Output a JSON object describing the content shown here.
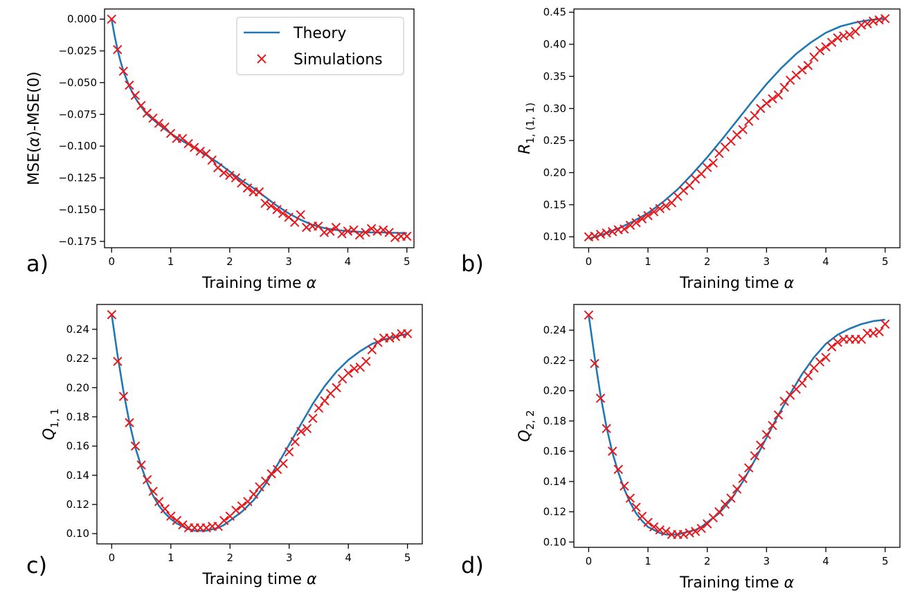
{
  "colors": {
    "theory": "#1f77b4",
    "simulations": "#e8171b",
    "axes": "#000000"
  },
  "legend": {
    "theory_label": "Theory",
    "simulations_label": "Simulations",
    "placement": "top-right of panel a"
  },
  "chart_data": [
    {
      "type": "line",
      "panel": "a)",
      "xlabel": "Training time α",
      "ylabel": "MSE(α)-MSE(0)",
      "xlim": [
        -0.12,
        5.12
      ],
      "ylim": [
        -0.18,
        0.008
      ],
      "xticks": [
        0,
        1,
        2,
        3,
        4,
        5
      ],
      "yticks": [
        0.0,
        -0.025,
        -0.05,
        -0.075,
        -0.1,
        -0.125,
        -0.15,
        -0.175
      ],
      "ytick_labels": [
        "0.000",
        "−0.025",
        "−0.050",
        "−0.075",
        "−0.100",
        "−0.125",
        "−0.150",
        "−0.175"
      ],
      "series": [
        {
          "name": "Theory",
          "kind": "line",
          "x": [
            0,
            0.05,
            0.1,
            0.15,
            0.2,
            0.3,
            0.4,
            0.5,
            0.6,
            0.7,
            0.8,
            1.0,
            1.2,
            1.4,
            1.6,
            1.8,
            2.0,
            2.2,
            2.4,
            2.6,
            2.8,
            3.0,
            3.2,
            3.4,
            3.6,
            3.8,
            4.0,
            4.2,
            4.4,
            4.6,
            4.8,
            5.0
          ],
          "y": [
            0,
            -0.013,
            -0.024,
            -0.033,
            -0.041,
            -0.053,
            -0.062,
            -0.069,
            -0.075,
            -0.079,
            -0.083,
            -0.09,
            -0.096,
            -0.101,
            -0.107,
            -0.113,
            -0.12,
            -0.127,
            -0.133,
            -0.14,
            -0.147,
            -0.153,
            -0.158,
            -0.162,
            -0.1645,
            -0.166,
            -0.167,
            -0.1675,
            -0.168,
            -0.168,
            -0.1683,
            -0.1685
          ]
        },
        {
          "name": "Simulations",
          "kind": "scatter",
          "x": [
            0,
            0.1,
            0.2,
            0.3,
            0.4,
            0.5,
            0.6,
            0.7,
            0.8,
            0.9,
            1.0,
            1.1,
            1.2,
            1.3,
            1.4,
            1.5,
            1.6,
            1.7,
            1.8,
            1.9,
            2.0,
            2.1,
            2.2,
            2.3,
            2.4,
            2.5,
            2.6,
            2.7,
            2.8,
            2.9,
            3.0,
            3.1,
            3.2,
            3.3,
            3.4,
            3.5,
            3.6,
            3.7,
            3.8,
            3.9,
            4.0,
            4.1,
            4.2,
            4.3,
            4.4,
            4.5,
            4.6,
            4.7,
            4.8,
            4.9,
            5.0
          ],
          "y": [
            0,
            -0.024,
            -0.041,
            -0.052,
            -0.06,
            -0.068,
            -0.074,
            -0.078,
            -0.082,
            -0.085,
            -0.09,
            -0.094,
            -0.094,
            -0.098,
            -0.101,
            -0.104,
            -0.106,
            -0.111,
            -0.117,
            -0.121,
            -0.123,
            -0.125,
            -0.129,
            -0.133,
            -0.136,
            -0.136,
            -0.145,
            -0.147,
            -0.15,
            -0.153,
            -0.156,
            -0.16,
            -0.154,
            -0.164,
            -0.163,
            -0.163,
            -0.168,
            -0.167,
            -0.164,
            -0.169,
            -0.167,
            -0.166,
            -0.17,
            -0.168,
            -0.165,
            -0.167,
            -0.166,
            -0.168,
            -0.172,
            -0.171,
            -0.171
          ]
        }
      ]
    },
    {
      "type": "line",
      "panel": "b)",
      "xlabel": "Training time α",
      "ylabel": "R",
      "ylabel_subscript": "1, (1, 1)",
      "xlim": [
        -0.25,
        5.25
      ],
      "ylim": [
        0.083,
        0.455
      ],
      "xticks": [
        0,
        1,
        2,
        3,
        4,
        5
      ],
      "yticks": [
        0.1,
        0.15,
        0.2,
        0.25,
        0.3,
        0.35,
        0.4,
        0.45
      ],
      "ytick_labels": [
        "0.10",
        "0.15",
        "0.20",
        "0.25",
        "0.30",
        "0.35",
        "0.40",
        "0.45"
      ],
      "series": [
        {
          "name": "Theory",
          "kind": "line",
          "x": [
            0,
            0.25,
            0.5,
            0.75,
            1.0,
            1.25,
            1.5,
            1.75,
            2.0,
            2.25,
            2.5,
            2.75,
            3.0,
            3.25,
            3.5,
            3.75,
            4.0,
            4.25,
            4.5,
            4.75,
            5.0
          ],
          "y": [
            0.097,
            0.104,
            0.113,
            0.124,
            0.137,
            0.154,
            0.174,
            0.198,
            0.224,
            0.252,
            0.281,
            0.31,
            0.338,
            0.363,
            0.385,
            0.403,
            0.418,
            0.428,
            0.434,
            0.438,
            0.44
          ]
        },
        {
          "name": "Simulations",
          "kind": "scatter",
          "x": [
            0,
            0.1,
            0.2,
            0.3,
            0.4,
            0.5,
            0.6,
            0.7,
            0.8,
            0.9,
            1.0,
            1.1,
            1.2,
            1.3,
            1.4,
            1.5,
            1.6,
            1.7,
            1.8,
            1.9,
            2.0,
            2.1,
            2.2,
            2.3,
            2.4,
            2.5,
            2.6,
            2.7,
            2.8,
            2.9,
            3.0,
            3.1,
            3.2,
            3.3,
            3.4,
            3.5,
            3.6,
            3.7,
            3.8,
            3.9,
            4.0,
            4.1,
            4.2,
            4.3,
            4.4,
            4.5,
            4.6,
            4.7,
            4.8,
            4.9,
            5.0
          ],
          "y": [
            0.1,
            0.101,
            0.104,
            0.106,
            0.108,
            0.111,
            0.112,
            0.118,
            0.122,
            0.128,
            0.133,
            0.139,
            0.144,
            0.148,
            0.153,
            0.163,
            0.172,
            0.18,
            0.19,
            0.198,
            0.208,
            0.215,
            0.23,
            0.24,
            0.249,
            0.259,
            0.267,
            0.28,
            0.289,
            0.3,
            0.308,
            0.315,
            0.321,
            0.333,
            0.344,
            0.352,
            0.36,
            0.367,
            0.38,
            0.39,
            0.396,
            0.403,
            0.41,
            0.413,
            0.415,
            0.42,
            0.43,
            0.432,
            0.436,
            0.438,
            0.44
          ]
        }
      ]
    },
    {
      "type": "line",
      "panel": "c)",
      "xlabel": "Training time α",
      "ylabel": "Q",
      "ylabel_subscript": "1, 1",
      "xlim": [
        -0.25,
        5.25
      ],
      "ylim": [
        0.093,
        0.257
      ],
      "xticks": [
        0,
        1,
        2,
        3,
        4,
        5
      ],
      "yticks": [
        0.1,
        0.12,
        0.14,
        0.16,
        0.18,
        0.2,
        0.22,
        0.24
      ],
      "ytick_labels": [
        "0.10",
        "0.12",
        "0.14",
        "0.16",
        "0.18",
        "0.20",
        "0.22",
        "0.24"
      ],
      "series": [
        {
          "name": "Theory",
          "kind": "line",
          "x": [
            0,
            0.05,
            0.1,
            0.2,
            0.3,
            0.4,
            0.5,
            0.6,
            0.7,
            0.8,
            0.9,
            1.0,
            1.1,
            1.2,
            1.3,
            1.4,
            1.5,
            1.6,
            1.7,
            1.8,
            1.9,
            2.0,
            2.2,
            2.4,
            2.6,
            2.8,
            3.0,
            3.2,
            3.4,
            3.6,
            3.8,
            4.0,
            4.2,
            4.4,
            4.6,
            4.8,
            5.0
          ],
          "y": [
            0.25,
            0.236,
            0.222,
            0.197,
            0.176,
            0.159,
            0.146,
            0.135,
            0.126,
            0.119,
            0.114,
            0.11,
            0.107,
            0.105,
            0.103,
            0.102,
            0.102,
            0.102,
            0.103,
            0.104,
            0.106,
            0.109,
            0.115,
            0.123,
            0.134,
            0.147,
            0.161,
            0.175,
            0.189,
            0.201,
            0.211,
            0.219,
            0.225,
            0.23,
            0.233,
            0.235,
            0.237
          ]
        },
        {
          "name": "Simulations",
          "kind": "scatter",
          "x": [
            0,
            0.1,
            0.2,
            0.3,
            0.4,
            0.5,
            0.6,
            0.7,
            0.8,
            0.9,
            1.0,
            1.1,
            1.2,
            1.3,
            1.4,
            1.5,
            1.6,
            1.7,
            1.8,
            1.9,
            2.0,
            2.1,
            2.2,
            2.3,
            2.4,
            2.5,
            2.6,
            2.7,
            2.8,
            2.9,
            3.0,
            3.1,
            3.2,
            3.3,
            3.4,
            3.5,
            3.6,
            3.7,
            3.8,
            3.9,
            4.0,
            4.1,
            4.2,
            4.3,
            4.4,
            4.5,
            4.6,
            4.7,
            4.8,
            4.9,
            5.0
          ],
          "y": [
            0.25,
            0.218,
            0.194,
            0.176,
            0.16,
            0.147,
            0.137,
            0.129,
            0.122,
            0.117,
            0.112,
            0.109,
            0.106,
            0.104,
            0.104,
            0.104,
            0.104,
            0.105,
            0.105,
            0.109,
            0.112,
            0.116,
            0.119,
            0.122,
            0.127,
            0.132,
            0.136,
            0.141,
            0.144,
            0.148,
            0.156,
            0.163,
            0.17,
            0.172,
            0.179,
            0.186,
            0.191,
            0.196,
            0.2,
            0.206,
            0.21,
            0.213,
            0.214,
            0.218,
            0.226,
            0.231,
            0.234,
            0.234,
            0.235,
            0.237,
            0.237
          ]
        }
      ]
    },
    {
      "type": "line",
      "panel": "d)",
      "xlabel": "Training time α",
      "ylabel": "Q",
      "ylabel_subscript": "2, 2",
      "xlim": [
        -0.25,
        5.25
      ],
      "ylim": [
        0.0965,
        0.257
      ],
      "xticks": [
        0,
        1,
        2,
        3,
        4,
        5
      ],
      "yticks": [
        0.1,
        0.12,
        0.14,
        0.16,
        0.18,
        0.2,
        0.22,
        0.24
      ],
      "ytick_labels": [
        "0.10",
        "0.12",
        "0.14",
        "0.16",
        "0.18",
        "0.20",
        "0.22",
        "0.24"
      ],
      "series": [
        {
          "name": "Theory",
          "kind": "line",
          "x": [
            0,
            0.05,
            0.1,
            0.2,
            0.3,
            0.4,
            0.5,
            0.6,
            0.7,
            0.8,
            0.9,
            1.0,
            1.1,
            1.2,
            1.3,
            1.4,
            1.5,
            1.6,
            1.7,
            1.8,
            1.9,
            2.0,
            2.2,
            2.4,
            2.6,
            2.8,
            3.0,
            3.2,
            3.4,
            3.6,
            3.8,
            4.0,
            4.2,
            4.4,
            4.6,
            4.8,
            5.0
          ],
          "y": [
            0.25,
            0.236,
            0.222,
            0.197,
            0.176,
            0.159,
            0.146,
            0.135,
            0.126,
            0.119,
            0.114,
            0.11,
            0.108,
            0.106,
            0.105,
            0.105,
            0.105,
            0.106,
            0.107,
            0.108,
            0.11,
            0.113,
            0.119,
            0.128,
            0.14,
            0.154,
            0.169,
            0.184,
            0.198,
            0.211,
            0.222,
            0.231,
            0.237,
            0.241,
            0.244,
            0.246,
            0.247
          ]
        },
        {
          "name": "Simulations",
          "kind": "scatter",
          "x": [
            0,
            0.1,
            0.2,
            0.3,
            0.4,
            0.5,
            0.6,
            0.7,
            0.8,
            0.9,
            1.0,
            1.1,
            1.2,
            1.3,
            1.4,
            1.5,
            1.6,
            1.7,
            1.8,
            1.9,
            2.0,
            2.1,
            2.2,
            2.3,
            2.4,
            2.5,
            2.6,
            2.7,
            2.8,
            2.9,
            3.0,
            3.1,
            3.2,
            3.3,
            3.4,
            3.5,
            3.6,
            3.7,
            3.8,
            3.9,
            4.0,
            4.1,
            4.2,
            4.3,
            4.4,
            4.5,
            4.6,
            4.7,
            4.8,
            4.9,
            5.0
          ],
          "y": [
            0.25,
            0.218,
            0.195,
            0.175,
            0.16,
            0.148,
            0.137,
            0.129,
            0.123,
            0.117,
            0.113,
            0.11,
            0.108,
            0.107,
            0.105,
            0.105,
            0.105,
            0.106,
            0.107,
            0.109,
            0.112,
            0.116,
            0.12,
            0.125,
            0.129,
            0.135,
            0.142,
            0.149,
            0.157,
            0.164,
            0.171,
            0.177,
            0.184,
            0.193,
            0.197,
            0.201,
            0.205,
            0.21,
            0.215,
            0.219,
            0.222,
            0.229,
            0.232,
            0.234,
            0.234,
            0.234,
            0.234,
            0.238,
            0.238,
            0.239,
            0.244
          ]
        }
      ]
    }
  ]
}
